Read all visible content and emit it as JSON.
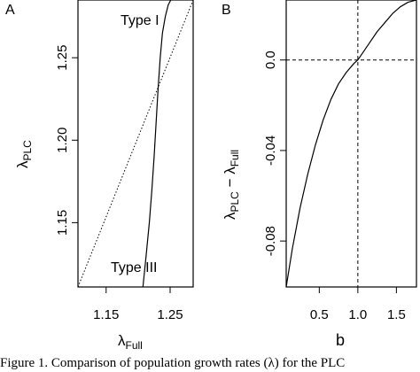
{
  "caption": "Figure 1. Comparison of population growth rates (λ) for the PLC",
  "chart_data": [
    {
      "type": "line",
      "panel_label": "A",
      "xlabel_main": "λ",
      "xlabel_sub": "Full",
      "ylabel_main": "λ",
      "ylabel_sub": "PLC",
      "xlim": [
        1.106,
        1.286
      ],
      "ylim": [
        1.111,
        1.285
      ],
      "x_ticks": [
        1.15,
        1.25
      ],
      "x_tick_labels": [
        "1.15",
        "1.25"
      ],
      "y_ticks": [
        1.15,
        1.2,
        1.25
      ],
      "y_tick_labels": [
        "1.15",
        "1.20",
        "1.25"
      ],
      "grid": false,
      "series": [
        {
          "style": "solid",
          "x": [
            1.2075,
            1.2125,
            1.2175,
            1.2215,
            1.225,
            1.228,
            1.231,
            1.2345,
            1.238,
            1.2425,
            1.247,
            1.251
          ],
          "y": [
            1.111,
            1.13,
            1.15,
            1.17,
            1.19,
            1.21,
            1.23,
            1.25,
            1.265,
            1.275,
            1.282,
            1.285
          ]
        },
        {
          "style": "dotted",
          "x": [
            1.106,
            1.286
          ],
          "y": [
            1.111,
            1.285
          ]
        }
      ],
      "annotations": [
        {
          "text": "Type I",
          "x": 1.2,
          "y": 1.275
        },
        {
          "text": "Type III",
          "x": 1.1915,
          "y": 1.1195
        }
      ]
    },
    {
      "type": "line",
      "panel_label": "B",
      "xlabel": "b",
      "ylabel_parts": [
        "λ",
        "PLC",
        " − λ",
        "Full"
      ],
      "xlim": [
        0.071,
        1.76
      ],
      "ylim": [
        -0.1003,
        0.0265
      ],
      "x_ticks": [
        0.5,
        1.0,
        1.5
      ],
      "x_tick_labels": [
        "0.5",
        "1.0",
        "1.5"
      ],
      "y_ticks": [
        -0.08,
        -0.04,
        0.0
      ],
      "y_tick_labels": [
        "-0.08",
        "-0.04",
        "0.0"
      ],
      "grid": false,
      "series": [
        {
          "style": "solid",
          "x": [
            0.071,
            0.15,
            0.25,
            0.35,
            0.45,
            0.55,
            0.65,
            0.75,
            0.85,
            0.95,
            1.0,
            1.05,
            1.15,
            1.25,
            1.35,
            1.45,
            1.55,
            1.65,
            1.76
          ],
          "y": [
            -0.1003,
            -0.0835,
            -0.0655,
            -0.0505,
            -0.0375,
            -0.0265,
            -0.0175,
            -0.0105,
            -0.0055,
            -0.0015,
            0.0,
            0.0025,
            0.0075,
            0.0125,
            0.0165,
            0.0205,
            0.0235,
            0.0255,
            0.0265
          ]
        }
      ],
      "reference_lines": [
        {
          "orientation": "vertical",
          "x": 1.0,
          "style": "dashed"
        },
        {
          "orientation": "horizontal",
          "y": 0.0,
          "style": "dashed"
        }
      ]
    }
  ]
}
